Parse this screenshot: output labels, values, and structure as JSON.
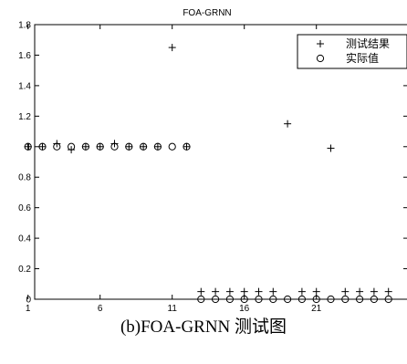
{
  "chart_data": {
    "type": "scatter",
    "title": "FOA-GRNN",
    "xlabel": "",
    "ylabel": "",
    "xlim": [
      0,
      26.5
    ],
    "ylim": [
      0,
      1.8
    ],
    "xticks": [
      1,
      6,
      11,
      16,
      21
    ],
    "yticks": [
      0,
      0.2,
      0.4,
      0.6,
      0.8,
      1,
      1.2,
      1.4,
      1.6,
      1.8
    ],
    "grid": false,
    "legend_position": "top-right",
    "series": [
      {
        "name": "测试结果",
        "marker": "plus",
        "x": [
          1,
          2,
          3,
          4,
          5,
          6,
          7,
          8,
          9,
          10,
          11,
          12,
          13,
          14,
          15,
          16,
          17,
          18,
          19,
          20,
          21,
          22,
          23,
          24,
          25,
          26
        ],
        "y": [
          1,
          1,
          1.02,
          0.98,
          1,
          1,
          1.02,
          1,
          1,
          1,
          1.65,
          1,
          0.05,
          0.05,
          0.05,
          0.05,
          0.05,
          0.05,
          1.15,
          0.05,
          0.05,
          0.99,
          0.05,
          0.05,
          0.05,
          0.05
        ]
      },
      {
        "name": "实际值",
        "marker": "circle",
        "x": [
          1,
          2,
          3,
          4,
          5,
          6,
          7,
          8,
          9,
          10,
          11,
          12,
          13,
          14,
          15,
          16,
          17,
          18,
          19,
          20,
          21,
          22,
          23,
          24,
          25,
          26
        ],
        "y": [
          1,
          1,
          1,
          1,
          1,
          1,
          1,
          1,
          1,
          1,
          1,
          1,
          0,
          0,
          0,
          0,
          0,
          0,
          0,
          0,
          0,
          0,
          0,
          0,
          0,
          0
        ]
      }
    ]
  },
  "caption": "(b)FOA-GRNN 测试图"
}
